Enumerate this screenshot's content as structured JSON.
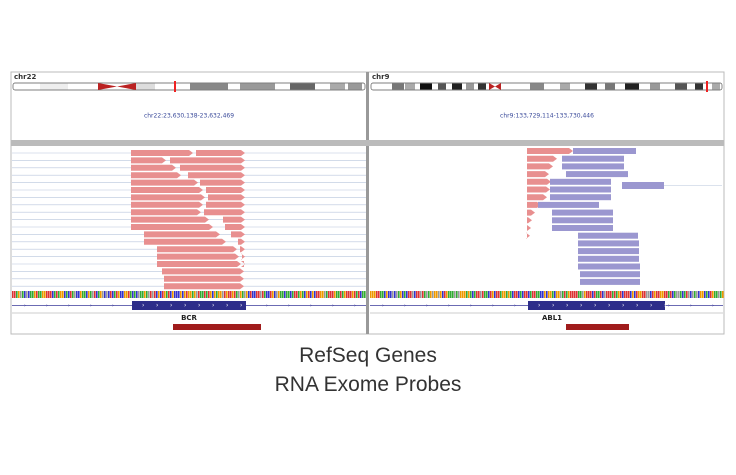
{
  "panels": [
    {
      "chromosome": "chr22",
      "locus": "chr22:23,630,138-23,632,469",
      "gene": "BCR"
    },
    {
      "chromosome": "chr9",
      "locus": "chr9:133,729,114-133,730,446",
      "gene": "ABL1"
    }
  ],
  "captions": [
    "RefSeq Genes",
    "RNA Exome Probes"
  ]
}
